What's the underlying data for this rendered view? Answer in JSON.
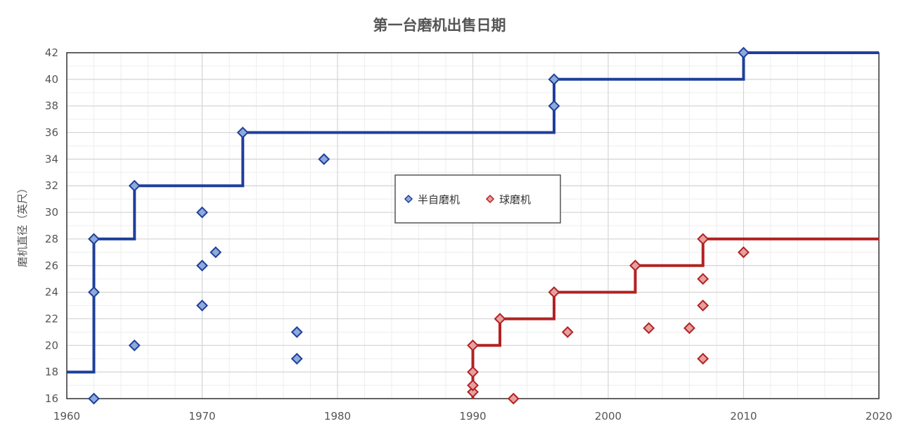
{
  "chart_data": {
    "type": "scatter",
    "title": "第一台磨机出售日期",
    "xlabel": "",
    "ylabel": "磨机直径（英尺）",
    "xlim": [
      1960,
      2020
    ],
    "ylim": [
      16,
      42
    ],
    "x_ticks": [
      1960,
      1970,
      1980,
      1990,
      2000,
      2010,
      2020
    ],
    "y_ticks": [
      16,
      18,
      20,
      22,
      24,
      26,
      28,
      30,
      32,
      34,
      36,
      38,
      40,
      42
    ],
    "grid": true,
    "legend_position": "center",
    "series": [
      {
        "name": "半自磨机",
        "color": "#1f3f9a",
        "marker_color": "#8eaadb",
        "points": [
          {
            "x": 1962,
            "y": 16
          },
          {
            "x": 1962,
            "y": 24
          },
          {
            "x": 1962,
            "y": 28
          },
          {
            "x": 1965,
            "y": 20
          },
          {
            "x": 1965,
            "y": 32
          },
          {
            "x": 1970,
            "y": 23
          },
          {
            "x": 1970,
            "y": 26
          },
          {
            "x": 1970,
            "y": 30
          },
          {
            "x": 1971,
            "y": 27
          },
          {
            "x": 1973,
            "y": 36
          },
          {
            "x": 1977,
            "y": 19
          },
          {
            "x": 1977,
            "y": 21
          },
          {
            "x": 1979,
            "y": 34
          },
          {
            "x": 1996,
            "y": 38
          },
          {
            "x": 1996,
            "y": 40
          },
          {
            "x": 2010,
            "y": 42
          }
        ],
        "step_line": [
          {
            "x": 1960,
            "y": 18
          },
          {
            "x": 1962,
            "y": 18
          },
          {
            "x": 1962,
            "y": 28
          },
          {
            "x": 1965,
            "y": 28
          },
          {
            "x": 1965,
            "y": 32
          },
          {
            "x": 1973,
            "y": 32
          },
          {
            "x": 1973,
            "y": 36
          },
          {
            "x": 1996,
            "y": 36
          },
          {
            "x": 1996,
            "y": 40
          },
          {
            "x": 2010,
            "y": 40
          },
          {
            "x": 2010,
            "y": 42
          },
          {
            "x": 2020,
            "y": 42
          }
        ]
      },
      {
        "name": "球磨机",
        "color": "#b22222",
        "marker_color": "#e6a0a0",
        "points": [
          {
            "x": 1990,
            "y": 16.5
          },
          {
            "x": 1990,
            "y": 17
          },
          {
            "x": 1990,
            "y": 18
          },
          {
            "x": 1990,
            "y": 20
          },
          {
            "x": 1992,
            "y": 22
          },
          {
            "x": 1993,
            "y": 16
          },
          {
            "x": 1996,
            "y": 24
          },
          {
            "x": 1997,
            "y": 21
          },
          {
            "x": 2002,
            "y": 26
          },
          {
            "x": 2003,
            "y": 21.3
          },
          {
            "x": 2006,
            "y": 21.3
          },
          {
            "x": 2007,
            "y": 19
          },
          {
            "x": 2007,
            "y": 23
          },
          {
            "x": 2007,
            "y": 25
          },
          {
            "x": 2007,
            "y": 28
          },
          {
            "x": 2010,
            "y": 27
          }
        ],
        "step_line": [
          {
            "x": 1990,
            "y": 16
          },
          {
            "x": 1990,
            "y": 20
          },
          {
            "x": 1992,
            "y": 20
          },
          {
            "x": 1992,
            "y": 22
          },
          {
            "x": 1996,
            "y": 22
          },
          {
            "x": 1996,
            "y": 24
          },
          {
            "x": 2002,
            "y": 24
          },
          {
            "x": 2002,
            "y": 26
          },
          {
            "x": 2007,
            "y": 26
          },
          {
            "x": 2007,
            "y": 28
          },
          {
            "x": 2020,
            "y": 28
          }
        ]
      }
    ]
  }
}
